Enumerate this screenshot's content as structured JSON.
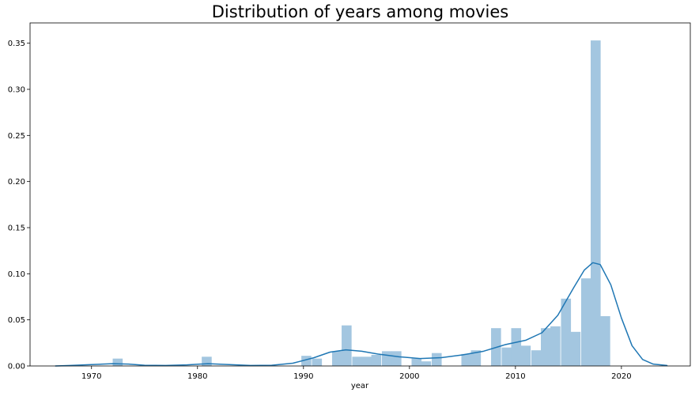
{
  "chart_data": {
    "type": "bar",
    "title": "Distribution of years among movies",
    "xlabel": "year",
    "ylabel": "",
    "xlim": [
      1964.2,
      2026.5
    ],
    "ylim": [
      0,
      0.372
    ],
    "x_ticks": [
      1970,
      1980,
      1990,
      2000,
      2010,
      2020
    ],
    "y_ticks": [
      0.0,
      0.05,
      0.1,
      0.15,
      0.2,
      0.25,
      0.3,
      0.35
    ],
    "x_tick_labels": [
      "1970",
      "1980",
      "1990",
      "2000",
      "2010",
      "2020"
    ],
    "y_tick_labels": [
      "0.00",
      "0.05",
      "0.10",
      "0.15",
      "0.20",
      "0.25",
      "0.30",
      "0.35"
    ],
    "grid": false,
    "histogram": {
      "bin_width": 0.94,
      "bins": [
        {
          "x0": 1972.0,
          "value": 0.008
        },
        {
          "x0": 1980.4,
          "value": 0.01
        },
        {
          "x0": 1989.8,
          "value": 0.011
        },
        {
          "x0": 1990.8,
          "value": 0.008
        },
        {
          "x0": 1992.7,
          "value": 0.016
        },
        {
          "x0": 1993.6,
          "value": 0.044
        },
        {
          "x0": 1994.6,
          "value": 0.01
        },
        {
          "x0": 1995.5,
          "value": 0.01
        },
        {
          "x0": 1996.4,
          "value": 0.012
        },
        {
          "x0": 1997.4,
          "value": 0.016
        },
        {
          "x0": 1998.3,
          "value": 0.016
        },
        {
          "x0": 2000.2,
          "value": 0.008
        },
        {
          "x0": 2001.1,
          "value": 0.005
        },
        {
          "x0": 2002.1,
          "value": 0.014
        },
        {
          "x0": 2004.9,
          "value": 0.013
        },
        {
          "x0": 2005.8,
          "value": 0.017
        },
        {
          "x0": 2007.7,
          "value": 0.041
        },
        {
          "x0": 2008.7,
          "value": 0.02
        },
        {
          "x0": 2009.6,
          "value": 0.041
        },
        {
          "x0": 2010.5,
          "value": 0.022
        },
        {
          "x0": 2011.5,
          "value": 0.017
        },
        {
          "x0": 2012.4,
          "value": 0.041
        },
        {
          "x0": 2013.3,
          "value": 0.043
        },
        {
          "x0": 2014.3,
          "value": 0.073
        },
        {
          "x0": 2015.2,
          "value": 0.037
        },
        {
          "x0": 2016.2,
          "value": 0.095
        },
        {
          "x0": 2017.1,
          "value": 0.353
        },
        {
          "x0": 2018.0,
          "value": 0.054
        }
      ]
    },
    "kde": {
      "x": [
        1966.6,
        1968,
        1970,
        1972,
        1973.5,
        1975,
        1977,
        1979,
        1981,
        1983,
        1985,
        1987,
        1989,
        1991,
        1992.5,
        1994,
        1995.5,
        1997,
        1999,
        2001,
        2003,
        2005,
        2007,
        2009,
        2011,
        2012.5,
        2014,
        2015.5,
        2016.5,
        2017.3,
        2018,
        2019,
        2020,
        2021,
        2022,
        2023,
        2024.3
      ],
      "y": [
        0.0,
        0.0005,
        0.0015,
        0.0025,
        0.002,
        0.0008,
        0.0005,
        0.0012,
        0.0025,
        0.0015,
        0.0005,
        0.0008,
        0.003,
        0.009,
        0.015,
        0.0175,
        0.016,
        0.013,
        0.01,
        0.008,
        0.009,
        0.012,
        0.016,
        0.023,
        0.028,
        0.036,
        0.055,
        0.085,
        0.104,
        0.112,
        0.11,
        0.088,
        0.052,
        0.022,
        0.007,
        0.002,
        0.0005
      ]
    },
    "colors": {
      "bar": "#a3c6e0",
      "kde": "#1f77b4",
      "axis": "#000000"
    }
  }
}
